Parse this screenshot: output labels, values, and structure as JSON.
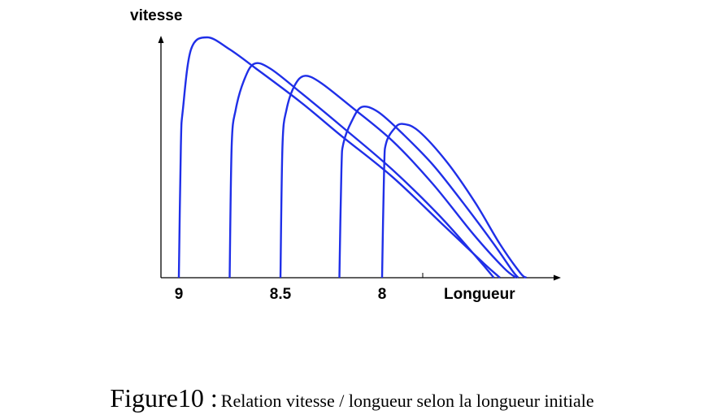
{
  "chart_data": {
    "type": "line",
    "title": "",
    "ylabel": "vitesse",
    "xlabel": "Longueur",
    "x_reversed": true,
    "tick_labels": [
      {
        "value": 9,
        "label": "9"
      },
      {
        "value": 8.5,
        "label": "8.5"
      },
      {
        "value": 8,
        "label": "8"
      }
    ],
    "unlabeled_ticks": [
      7.8
    ],
    "grid": false,
    "line_color": "#1f2fe8",
    "series": [
      {
        "points": [
          [
            9.0,
            0
          ],
          [
            8.99,
            0.55
          ],
          [
            8.98,
            0.7
          ],
          [
            8.94,
            0.95
          ],
          [
            8.86,
            1.0
          ],
          [
            8.75,
            0.95
          ],
          [
            8.62,
            0.87
          ],
          [
            8.4,
            0.73
          ],
          [
            8.2,
            0.59
          ],
          [
            7.95,
            0.42
          ],
          [
            7.7,
            0.22
          ],
          [
            7.5,
            0.06
          ],
          [
            7.42,
            0
          ]
        ]
      },
      {
        "points": [
          [
            8.5,
            0
          ],
          [
            8.49,
            0.55
          ],
          [
            8.47,
            0.7
          ],
          [
            8.43,
            0.8
          ],
          [
            8.38,
            0.84
          ],
          [
            8.3,
            0.81
          ],
          [
            8.15,
            0.71
          ],
          [
            7.95,
            0.57
          ],
          [
            7.75,
            0.39
          ],
          [
            7.55,
            0.18
          ],
          [
            7.4,
            0.04
          ],
          [
            7.34,
            0
          ]
        ]
      },
      {
        "points": [
          [
            8.0,
            0
          ],
          [
            7.99,
            0.45
          ],
          [
            7.98,
            0.56
          ],
          [
            7.94,
            0.62
          ],
          [
            7.9,
            0.64
          ],
          [
            7.82,
            0.61
          ],
          [
            7.68,
            0.48
          ],
          [
            7.54,
            0.31
          ],
          [
            7.42,
            0.14
          ],
          [
            7.32,
            0.02
          ],
          [
            7.29,
            0
          ]
        ]
      },
      {
        "points": [
          [
            8.21,
            0
          ],
          [
            8.2,
            0.45
          ],
          [
            8.19,
            0.56
          ],
          [
            8.15,
            0.65
          ],
          [
            8.1,
            0.71
          ],
          [
            8.02,
            0.69
          ],
          [
            7.9,
            0.6
          ],
          [
            7.75,
            0.47
          ],
          [
            7.6,
            0.31
          ],
          [
            7.45,
            0.14
          ],
          [
            7.36,
            0.03
          ],
          [
            7.33,
            0
          ]
        ]
      },
      {
        "points": [
          [
            8.75,
            0
          ],
          [
            8.74,
            0.55
          ],
          [
            8.72,
            0.7
          ],
          [
            8.68,
            0.82
          ],
          [
            8.63,
            0.89
          ],
          [
            8.55,
            0.87
          ],
          [
            8.4,
            0.77
          ],
          [
            8.2,
            0.63
          ],
          [
            7.95,
            0.45
          ],
          [
            7.72,
            0.26
          ],
          [
            7.53,
            0.08
          ],
          [
            7.45,
            0
          ]
        ]
      }
    ]
  },
  "caption": {
    "figure_number": "Figure10 :",
    "text": "Relation vitesse / longueur selon la longueur initiale"
  }
}
